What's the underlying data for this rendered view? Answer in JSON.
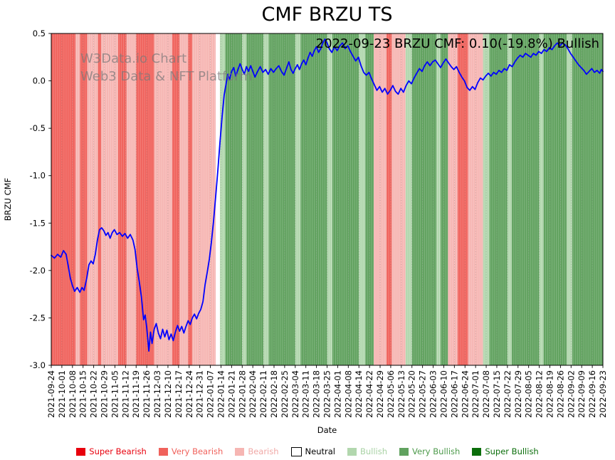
{
  "annotation": "2022-09-23 BRZU CMF: 0.10(-19.8%) Bullish",
  "watermark": {
    "line1": "W3Data.io Chart",
    "line2": "Web3 Data & NFT Platform"
  },
  "chart_data": {
    "type": "line",
    "title": "CMF BRZU TS",
    "xlabel": "Date",
    "ylabel": "BRZU CMF",
    "ylim": [
      -3.0,
      0.5
    ],
    "yticks": [
      0.5,
      0.0,
      -0.5,
      -1.0,
      -1.5,
      -2.0,
      -2.5,
      -3.0
    ],
    "grid": "vertical-dotted",
    "legend_position": "bottom",
    "x_tick_labels": [
      "2021-09-24",
      "2021-10-01",
      "2021-10-08",
      "2021-10-15",
      "2021-10-22",
      "2021-10-29",
      "2021-11-05",
      "2021-11-12",
      "2021-11-19",
      "2021-11-26",
      "2021-12-03",
      "2021-12-10",
      "2021-12-17",
      "2021-12-24",
      "2021-12-31",
      "2022-01-07",
      "2022-01-14",
      "2022-01-21",
      "2022-01-28",
      "2022-02-04",
      "2022-02-11",
      "2022-02-18",
      "2022-02-25",
      "2022-03-04",
      "2022-03-11",
      "2022-03-18",
      "2022-03-25",
      "2022-04-01",
      "2022-04-08",
      "2022-04-14",
      "2022-04-22",
      "2022-04-29",
      "2022-05-06",
      "2022-05-13",
      "2022-05-20",
      "2022-05-27",
      "2022-06-03",
      "2022-06-10",
      "2022-06-17",
      "2022-06-24",
      "2022-07-01",
      "2022-07-08",
      "2022-07-15",
      "2022-07-22",
      "2022-07-29",
      "2022-08-05",
      "2022-08-12",
      "2022-08-19",
      "2022-08-26",
      "2022-09-02",
      "2022-09-09",
      "2022-09-16",
      "2022-09-23"
    ],
    "band_colors": {
      "super_bearish": "#e8000d",
      "very_bearish": "#f0625c",
      "bearish": "#f6b6b3",
      "neutral": "#ffffff",
      "bullish": "#b2d7ae",
      "very_bullish": "#61a25f",
      "super_bullish": "#0b6e0b"
    },
    "bands": [
      [
        0,
        2.3,
        "very_bearish"
      ],
      [
        2.3,
        2.7,
        "bearish"
      ],
      [
        2.7,
        3.4,
        "very_bearish"
      ],
      [
        3.4,
        4.4,
        "bearish"
      ],
      [
        4.4,
        4.7,
        "very_bearish"
      ],
      [
        4.7,
        6.3,
        "bearish"
      ],
      [
        6.3,
        7.1,
        "very_bearish"
      ],
      [
        7.1,
        8.0,
        "bearish"
      ],
      [
        8.0,
        9.7,
        "very_bearish"
      ],
      [
        9.7,
        11.4,
        "bearish"
      ],
      [
        11.4,
        12.1,
        "very_bearish"
      ],
      [
        12.1,
        12.9,
        "bearish"
      ],
      [
        12.9,
        13.3,
        "very_bearish"
      ],
      [
        13.3,
        15.5,
        "bearish"
      ],
      [
        15.5,
        15.9,
        "neutral"
      ],
      [
        15.9,
        16.4,
        "bullish"
      ],
      [
        16.4,
        18.0,
        "very_bullish"
      ],
      [
        18.0,
        18.4,
        "bullish"
      ],
      [
        18.4,
        20.0,
        "very_bullish"
      ],
      [
        20.0,
        20.5,
        "bullish"
      ],
      [
        20.5,
        23.0,
        "very_bullish"
      ],
      [
        23.0,
        23.5,
        "bullish"
      ],
      [
        23.5,
        26.0,
        "very_bullish"
      ],
      [
        26.0,
        26.5,
        "bullish"
      ],
      [
        26.5,
        29.0,
        "very_bullish"
      ],
      [
        29.0,
        29.6,
        "bullish"
      ],
      [
        29.6,
        30.4,
        "very_bullish"
      ],
      [
        30.4,
        31.6,
        "bearish"
      ],
      [
        31.6,
        32.1,
        "very_bearish"
      ],
      [
        32.1,
        33.4,
        "bearish"
      ],
      [
        33.4,
        34.0,
        "bullish"
      ],
      [
        34.0,
        36.3,
        "very_bullish"
      ],
      [
        36.3,
        36.7,
        "bullish"
      ],
      [
        36.7,
        37.4,
        "very_bullish"
      ],
      [
        37.4,
        38.3,
        "bearish"
      ],
      [
        38.3,
        39.3,
        "very_bearish"
      ],
      [
        39.3,
        40.7,
        "bearish"
      ],
      [
        40.7,
        41.3,
        "bullish"
      ],
      [
        41.3,
        43.0,
        "very_bullish"
      ],
      [
        43.0,
        43.4,
        "bullish"
      ],
      [
        43.4,
        46.0,
        "very_bullish"
      ],
      [
        46.0,
        46.4,
        "bullish"
      ],
      [
        46.4,
        48.6,
        "very_bullish"
      ],
      [
        48.6,
        49.1,
        "bullish"
      ],
      [
        49.1,
        52,
        "very_bullish"
      ]
    ],
    "series": [
      {
        "name": "BRZU CMF",
        "color": "#0000ff",
        "points": [
          [
            0,
            -1.84
          ],
          [
            0.3,
            -1.87
          ],
          [
            0.6,
            -1.83
          ],
          [
            0.9,
            -1.86
          ],
          [
            1.15,
            -1.79
          ],
          [
            1.4,
            -1.83
          ],
          [
            1.6,
            -1.95
          ],
          [
            1.8,
            -2.08
          ],
          [
            2.0,
            -2.16
          ],
          [
            2.2,
            -2.22
          ],
          [
            2.45,
            -2.18
          ],
          [
            2.7,
            -2.23
          ],
          [
            2.9,
            -2.18
          ],
          [
            3.1,
            -2.21
          ],
          [
            3.35,
            -2.08
          ],
          [
            3.55,
            -1.94
          ],
          [
            3.75,
            -1.9
          ],
          [
            3.95,
            -1.93
          ],
          [
            4.15,
            -1.83
          ],
          [
            4.35,
            -1.68
          ],
          [
            4.55,
            -1.57
          ],
          [
            4.75,
            -1.55
          ],
          [
            4.95,
            -1.58
          ],
          [
            5.15,
            -1.63
          ],
          [
            5.35,
            -1.6
          ],
          [
            5.55,
            -1.66
          ],
          [
            5.75,
            -1.6
          ],
          [
            5.95,
            -1.57
          ],
          [
            6.2,
            -1.62
          ],
          [
            6.45,
            -1.6
          ],
          [
            6.7,
            -1.64
          ],
          [
            6.95,
            -1.61
          ],
          [
            7.2,
            -1.66
          ],
          [
            7.45,
            -1.62
          ],
          [
            7.7,
            -1.68
          ],
          [
            7.9,
            -1.78
          ],
          [
            8.1,
            -1.98
          ],
          [
            8.3,
            -2.12
          ],
          [
            8.5,
            -2.28
          ],
          [
            8.7,
            -2.52
          ],
          [
            8.85,
            -2.47
          ],
          [
            9.0,
            -2.6
          ],
          [
            9.2,
            -2.85
          ],
          [
            9.35,
            -2.65
          ],
          [
            9.5,
            -2.77
          ],
          [
            9.7,
            -2.62
          ],
          [
            9.9,
            -2.56
          ],
          [
            10.1,
            -2.66
          ],
          [
            10.3,
            -2.72
          ],
          [
            10.5,
            -2.62
          ],
          [
            10.7,
            -2.7
          ],
          [
            10.9,
            -2.63
          ],
          [
            11.1,
            -2.73
          ],
          [
            11.3,
            -2.67
          ],
          [
            11.5,
            -2.74
          ],
          [
            11.7,
            -2.65
          ],
          [
            11.9,
            -2.58
          ],
          [
            12.1,
            -2.64
          ],
          [
            12.3,
            -2.59
          ],
          [
            12.5,
            -2.66
          ],
          [
            12.7,
            -2.59
          ],
          [
            12.9,
            -2.53
          ],
          [
            13.1,
            -2.57
          ],
          [
            13.3,
            -2.5
          ],
          [
            13.5,
            -2.46
          ],
          [
            13.7,
            -2.51
          ],
          [
            13.9,
            -2.45
          ],
          [
            14.1,
            -2.41
          ],
          [
            14.3,
            -2.33
          ],
          [
            14.5,
            -2.15
          ],
          [
            14.7,
            -2.02
          ],
          [
            14.9,
            -1.88
          ],
          [
            15.1,
            -1.7
          ],
          [
            15.3,
            -1.48
          ],
          [
            15.5,
            -1.22
          ],
          [
            15.7,
            -0.95
          ],
          [
            15.9,
            -0.65
          ],
          [
            16.1,
            -0.38
          ],
          [
            16.3,
            -0.15
          ],
          [
            16.5,
            -0.02
          ],
          [
            16.65,
            0.07
          ],
          [
            16.8,
            0.01
          ],
          [
            17.0,
            0.1
          ],
          [
            17.2,
            0.14
          ],
          [
            17.4,
            0.05
          ],
          [
            17.6,
            0.12
          ],
          [
            17.8,
            0.18
          ],
          [
            18.0,
            0.12
          ],
          [
            18.2,
            0.07
          ],
          [
            18.4,
            0.15
          ],
          [
            18.6,
            0.1
          ],
          [
            18.8,
            0.16
          ],
          [
            19.0,
            0.1
          ],
          [
            19.2,
            0.04
          ],
          [
            19.45,
            0.1
          ],
          [
            19.7,
            0.15
          ],
          [
            19.95,
            0.09
          ],
          [
            20.2,
            0.12
          ],
          [
            20.45,
            0.07
          ],
          [
            20.7,
            0.13
          ],
          [
            20.95,
            0.09
          ],
          [
            21.2,
            0.13
          ],
          [
            21.45,
            0.16
          ],
          [
            21.7,
            0.1
          ],
          [
            21.95,
            0.06
          ],
          [
            22.2,
            0.14
          ],
          [
            22.4,
            0.2
          ],
          [
            22.6,
            0.12
          ],
          [
            22.8,
            0.08
          ],
          [
            23.0,
            0.13
          ],
          [
            23.2,
            0.17
          ],
          [
            23.4,
            0.12
          ],
          [
            23.6,
            0.18
          ],
          [
            23.8,
            0.22
          ],
          [
            24.0,
            0.17
          ],
          [
            24.2,
            0.24
          ],
          [
            24.4,
            0.3
          ],
          [
            24.6,
            0.26
          ],
          [
            24.8,
            0.32
          ],
          [
            25.0,
            0.36
          ],
          [
            25.2,
            0.3
          ],
          [
            25.4,
            0.34
          ],
          [
            25.6,
            0.4
          ],
          [
            25.8,
            0.44
          ],
          [
            26.0,
            0.4
          ],
          [
            26.2,
            0.34
          ],
          [
            26.45,
            0.3
          ],
          [
            26.7,
            0.36
          ],
          [
            26.95,
            0.32
          ],
          [
            27.2,
            0.37
          ],
          [
            27.45,
            0.4
          ],
          [
            27.7,
            0.34
          ],
          [
            27.95,
            0.37
          ],
          [
            28.2,
            0.31
          ],
          [
            28.45,
            0.26
          ],
          [
            28.7,
            0.21
          ],
          [
            28.95,
            0.25
          ],
          [
            29.2,
            0.16
          ],
          [
            29.45,
            0.09
          ],
          [
            29.7,
            0.06
          ],
          [
            29.95,
            0.09
          ],
          [
            30.2,
            0.02
          ],
          [
            30.45,
            -0.04
          ],
          [
            30.7,
            -0.1
          ],
          [
            30.95,
            -0.06
          ],
          [
            31.2,
            -0.12
          ],
          [
            31.45,
            -0.08
          ],
          [
            31.7,
            -0.14
          ],
          [
            31.95,
            -0.1
          ],
          [
            32.2,
            -0.05
          ],
          [
            32.45,
            -0.11
          ],
          [
            32.7,
            -0.14
          ],
          [
            32.95,
            -0.08
          ],
          [
            33.2,
            -0.12
          ],
          [
            33.45,
            -0.05
          ],
          [
            33.7,
            0.0
          ],
          [
            33.95,
            -0.03
          ],
          [
            34.2,
            0.03
          ],
          [
            34.45,
            0.08
          ],
          [
            34.7,
            0.13
          ],
          [
            34.95,
            0.1
          ],
          [
            35.2,
            0.16
          ],
          [
            35.45,
            0.2
          ],
          [
            35.7,
            0.16
          ],
          [
            35.95,
            0.2
          ],
          [
            36.2,
            0.22
          ],
          [
            36.45,
            0.18
          ],
          [
            36.7,
            0.14
          ],
          [
            36.95,
            0.19
          ],
          [
            37.2,
            0.23
          ],
          [
            37.45,
            0.19
          ],
          [
            37.7,
            0.15
          ],
          [
            37.95,
            0.12
          ],
          [
            38.2,
            0.15
          ],
          [
            38.45,
            0.09
          ],
          [
            38.7,
            0.04
          ],
          [
            38.95,
            0.0
          ],
          [
            39.2,
            -0.07
          ],
          [
            39.45,
            -0.1
          ],
          [
            39.7,
            -0.06
          ],
          [
            39.95,
            -0.09
          ],
          [
            40.2,
            -0.02
          ],
          [
            40.45,
            0.03
          ],
          [
            40.7,
            0.01
          ],
          [
            40.95,
            0.05
          ],
          [
            41.2,
            0.08
          ],
          [
            41.45,
            0.05
          ],
          [
            41.7,
            0.09
          ],
          [
            41.95,
            0.07
          ],
          [
            42.2,
            0.11
          ],
          [
            42.45,
            0.09
          ],
          [
            42.7,
            0.13
          ],
          [
            42.95,
            0.11
          ],
          [
            43.2,
            0.17
          ],
          [
            43.45,
            0.15
          ],
          [
            43.7,
            0.2
          ],
          [
            43.95,
            0.24
          ],
          [
            44.2,
            0.27
          ],
          [
            44.45,
            0.25
          ],
          [
            44.7,
            0.29
          ],
          [
            44.95,
            0.27
          ],
          [
            45.2,
            0.25
          ],
          [
            45.45,
            0.29
          ],
          [
            45.7,
            0.27
          ],
          [
            45.95,
            0.31
          ],
          [
            46.2,
            0.29
          ],
          [
            46.45,
            0.33
          ],
          [
            46.7,
            0.31
          ],
          [
            46.95,
            0.35
          ],
          [
            47.2,
            0.33
          ],
          [
            47.45,
            0.37
          ],
          [
            47.7,
            0.4
          ],
          [
            47.95,
            0.37
          ],
          [
            48.2,
            0.4
          ],
          [
            48.45,
            0.38
          ],
          [
            48.7,
            0.34
          ],
          [
            48.95,
            0.29
          ],
          [
            49.2,
            0.25
          ],
          [
            49.45,
            0.21
          ],
          [
            49.7,
            0.17
          ],
          [
            49.95,
            0.14
          ],
          [
            50.2,
            0.11
          ],
          [
            50.45,
            0.07
          ],
          [
            50.7,
            0.1
          ],
          [
            50.95,
            0.13
          ],
          [
            51.2,
            0.09
          ],
          [
            51.45,
            0.11
          ],
          [
            51.7,
            0.08
          ],
          [
            51.85,
            0.12
          ],
          [
            52,
            0.1
          ]
        ]
      }
    ],
    "legend": [
      {
        "label": "Super Bearish",
        "class": "super_bearish",
        "color": "#e8000d",
        "text_color": "#e8000d"
      },
      {
        "label": "Very Bearish",
        "class": "very_bearish",
        "color": "#f0625c",
        "text_color": "#f0625c"
      },
      {
        "label": "Bearish",
        "class": "bearish",
        "color": "#f6b6b3",
        "text_color": "#f0a8a6"
      },
      {
        "label": "Neutral",
        "class": "neutral",
        "color": "#ffffff",
        "text_color": "#000000",
        "edge": "#000000"
      },
      {
        "label": "Bullish",
        "class": "bullish",
        "color": "#b2d7ae",
        "text_color": "#a8d2a4"
      },
      {
        "label": "Very Bullish",
        "class": "very_bullish",
        "color": "#61a25f",
        "text_color": "#4d9a4b"
      },
      {
        "label": "Super Bullish",
        "class": "super_bullish",
        "color": "#0b6e0b",
        "text_color": "#0b6e0b"
      }
    ]
  }
}
